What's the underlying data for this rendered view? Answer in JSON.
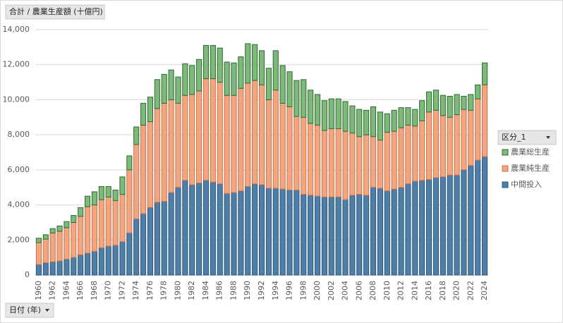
{
  "chart_data": {
    "type": "stacked_bar",
    "title": "合計 / 農業生産額 (十億円)",
    "legend_title": "区分_1",
    "x_field": "日付 (年)",
    "legend": "right",
    "grid": true,
    "categories": [
      "1960",
      null,
      "1962",
      null,
      "1964",
      null,
      "1966",
      null,
      "1968",
      null,
      "1970",
      null,
      "1972",
      null,
      "1974",
      null,
      "1976",
      null,
      "1978",
      null,
      "1980",
      null,
      "1982",
      null,
      "1984",
      null,
      "1986",
      null,
      "1988",
      null,
      "1990",
      null,
      "1992",
      null,
      "1994",
      null,
      "1996",
      null,
      "1998",
      null,
      "2000",
      null,
      "2002",
      null,
      "2004",
      null,
      "2006",
      null,
      "2008",
      null,
      "2010",
      null,
      "2012",
      null,
      "2014",
      null,
      "2016",
      null,
      "2018",
      null,
      "2020",
      null,
      "2022",
      null,
      "2024"
    ],
    "ylim": [
      0,
      14000
    ],
    "yticks": [
      0,
      {
        "value": 2000,
        "label": "2,000"
      },
      {
        "value": 4000,
        "label": "4,000"
      },
      {
        "value": 6000,
        "label": "6,000"
      },
      {
        "value": 8000,
        "label": "8,000"
      },
      {
        "value": 10000,
        "label": "10,000"
      },
      {
        "value": 12000,
        "label": "12,000"
      },
      {
        "value": 14000,
        "label": "14,000"
      }
    ],
    "series": [
      {
        "name": "中間投入",
        "color": "#4e7fab",
        "stroke": "#2c5478",
        "values": [
          600,
          700,
          750,
          800,
          900,
          1000,
          1150,
          1250,
          1350,
          1550,
          1650,
          1700,
          1900,
          2400,
          3200,
          3500,
          3850,
          4150,
          4200,
          4700,
          5000,
          5400,
          5150,
          5250,
          5400,
          5300,
          5200,
          4650,
          4700,
          4800,
          5050,
          5200,
          5150,
          4950,
          4950,
          4900,
          4850,
          4850,
          4600,
          4550,
          4500,
          4450,
          4450,
          4450,
          4300,
          4550,
          4600,
          4550,
          5000,
          4950,
          4800,
          4900,
          5000,
          5200,
          5350,
          5400,
          5450,
          5550,
          5600,
          5700,
          5700,
          6000,
          6250,
          6550,
          6750
        ]
      },
      {
        "name": "農業純生産",
        "color": "#f4a47e",
        "stroke": "#c8744c",
        "values": [
          1250,
          1350,
          1650,
          1700,
          1800,
          2000,
          2200,
          2650,
          2650,
          2750,
          2800,
          2550,
          2700,
          3600,
          4250,
          5050,
          4900,
          5350,
          5600,
          5300,
          4800,
          4850,
          5150,
          5250,
          5800,
          5900,
          5800,
          5600,
          5550,
          5850,
          5900,
          5900,
          5700,
          5050,
          5600,
          4900,
          4750,
          4200,
          4400,
          4100,
          4050,
          3800,
          3900,
          3900,
          3900,
          3550,
          3300,
          3450,
          2900,
          2750,
          3350,
          3300,
          3400,
          3350,
          3150,
          3400,
          3850,
          3850,
          3500,
          3300,
          3450,
          3450,
          3150,
          3500,
          4100
        ]
      },
      {
        "name": "農業総生産",
        "color": "#7cb97a",
        "stroke": "#2f6b30",
        "values": [
          250,
          250,
          250,
          300,
          350,
          400,
          500,
          600,
          750,
          750,
          600,
          600,
          1000,
          800,
          1000,
          1250,
          1400,
          1650,
          1650,
          1700,
          1500,
          1800,
          1650,
          1800,
          1900,
          1900,
          1950,
          1900,
          1850,
          1800,
          2250,
          2050,
          1950,
          1800,
          2250,
          2150,
          2000,
          2050,
          2150,
          1900,
          1750,
          1700,
          1700,
          1700,
          1700,
          1550,
          1550,
          1400,
          1700,
          1600,
          1050,
          1200,
          1150,
          1000,
          950,
          1150,
          1150,
          1150,
          1150,
          1200,
          1150,
          750,
          900,
          800,
          1250
        ]
      }
    ]
  }
}
